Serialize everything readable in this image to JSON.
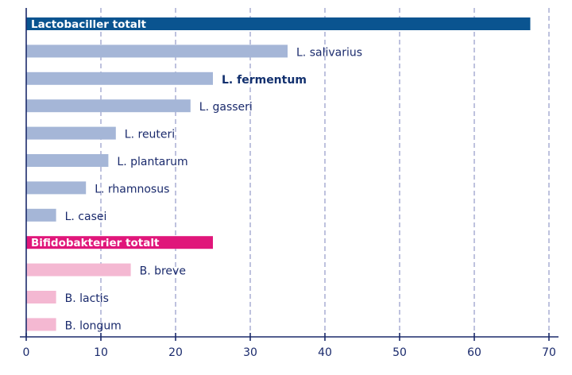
{
  "chart_data": {
    "type": "bar",
    "orientation": "horizontal",
    "title": "",
    "xlabel": "",
    "ylabel": "",
    "xlim": [
      0,
      70
    ],
    "xticks": [
      0,
      10,
      20,
      30,
      40,
      50,
      60,
      70
    ],
    "grid": "vertical-dashed",
    "legend": "none",
    "colors": {
      "lacto_total": "#0a5490",
      "lacto_species": "#a5b6d7",
      "bifido_total": "#e0167a",
      "bifido_species": "#f4b8d2",
      "axis": "#1b2a6b",
      "grid": "#7c84bd",
      "label_text": "#1a2a6c",
      "label_strong": "#12306e"
    },
    "bars": [
      {
        "label": "Lactobaciller totalt",
        "value": 67.5,
        "group": "lacto_total",
        "label_style": "inside"
      },
      {
        "label": "L. salivarius",
        "value": 35,
        "group": "lacto_species",
        "label_style": "normal"
      },
      {
        "label": "L. fermentum",
        "value": 25,
        "group": "lacto_species",
        "label_style": "strong"
      },
      {
        "label": "L. gasseri",
        "value": 22,
        "group": "lacto_species",
        "label_style": "normal"
      },
      {
        "label": "L. reuteri",
        "value": 12,
        "group": "lacto_species",
        "label_style": "normal"
      },
      {
        "label": "L. plantarum",
        "value": 11,
        "group": "lacto_species",
        "label_style": "normal"
      },
      {
        "label": "L. rhamnosus",
        "value": 8,
        "group": "lacto_species",
        "label_style": "normal"
      },
      {
        "label": "L. casei",
        "value": 4,
        "group": "lacto_species",
        "label_style": "normal"
      },
      {
        "label": "Bifidobakterier totalt",
        "value": 25,
        "group": "bifido_total",
        "label_style": "inside"
      },
      {
        "label": "B. breve",
        "value": 14,
        "group": "bifido_species",
        "label_style": "normal"
      },
      {
        "label": "B. lactis",
        "value": 4,
        "group": "bifido_species",
        "label_style": "normal"
      },
      {
        "label": "B. longum",
        "value": 4,
        "group": "bifido_species",
        "label_style": "normal"
      }
    ]
  }
}
